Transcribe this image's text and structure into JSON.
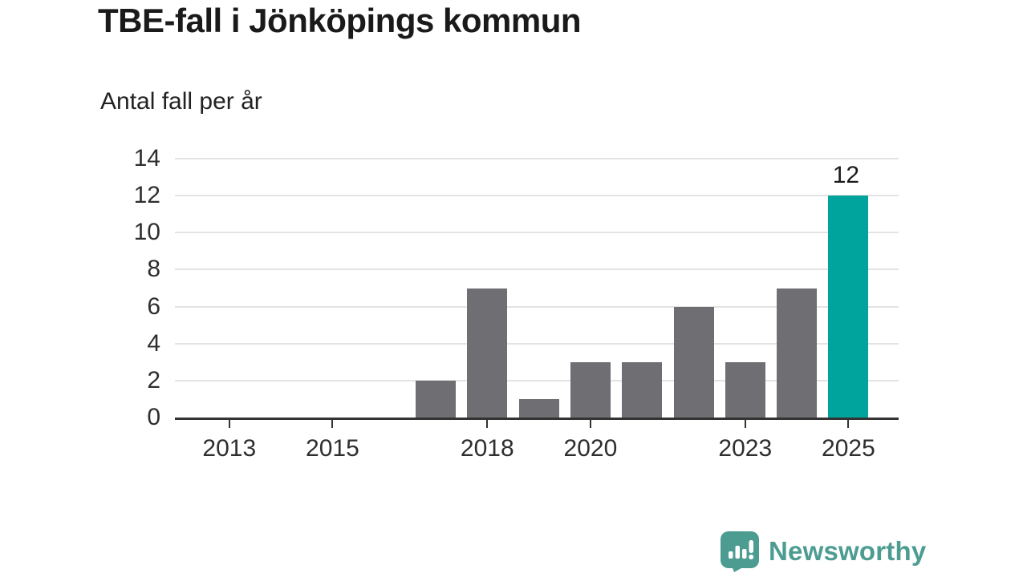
{
  "chart_data": {
    "type": "bar",
    "title": "TBE-fall i Jönköpings kommun",
    "subtitle": "Antal fall per år",
    "categories": [
      2012,
      2013,
      2014,
      2015,
      2016,
      2017,
      2018,
      2019,
      2020,
      2021,
      2022,
      2023,
      2024,
      2025
    ],
    "values": [
      0,
      0,
      0,
      0,
      0,
      2,
      7,
      1,
      3,
      3,
      6,
      3,
      7,
      12
    ],
    "xlabel": "",
    "ylabel": "",
    "ylim": [
      0,
      14
    ],
    "yticks": [
      0,
      2,
      4,
      6,
      8,
      10,
      12,
      14
    ],
    "xtick_labels": [
      "2013",
      "2015",
      "2018",
      "2020",
      "2023",
      "2025"
    ],
    "grid": "horizontal",
    "legend": "none",
    "bar_color": "#6e6e73",
    "gridline_color": "#e3e3e3",
    "axis_color": "#333333",
    "highlight": {
      "year": 2025,
      "color": "#00a49c",
      "label": "12"
    }
  },
  "logo": {
    "text": "Newsworthy",
    "icon": "newsworthy-speech-bubble-chart-icon",
    "color": "#4c9c92"
  }
}
